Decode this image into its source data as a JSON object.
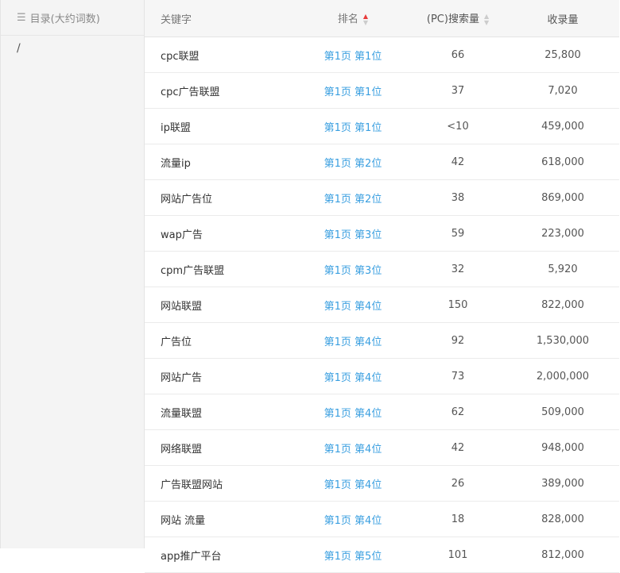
{
  "sidebar": {
    "title": "目录(大约词数)",
    "items": [
      "/"
    ]
  },
  "table": {
    "headers": {
      "keyword": "关键字",
      "rank": "排名",
      "search": "(PC)搜索量",
      "indexed": "收录量"
    },
    "rows": [
      {
        "keyword": "cpc联盟",
        "rank": "第1页 第1位",
        "search": "66",
        "indexed": "25,800"
      },
      {
        "keyword": "cpc广告联盟",
        "rank": "第1页 第1位",
        "search": "37",
        "indexed": "7,020"
      },
      {
        "keyword": "ip联盟",
        "rank": "第1页 第1位",
        "search": "<10",
        "indexed": "459,000"
      },
      {
        "keyword": "流量ip",
        "rank": "第1页 第2位",
        "search": "42",
        "indexed": "618,000"
      },
      {
        "keyword": "网站广告位",
        "rank": "第1页 第2位",
        "search": "38",
        "indexed": "869,000"
      },
      {
        "keyword": "wap广告",
        "rank": "第1页 第3位",
        "search": "59",
        "indexed": "223,000"
      },
      {
        "keyword": "cpm广告联盟",
        "rank": "第1页 第3位",
        "search": "32",
        "indexed": "5,920"
      },
      {
        "keyword": "网站联盟",
        "rank": "第1页 第4位",
        "search": "150",
        "indexed": "822,000"
      },
      {
        "keyword": "广告位",
        "rank": "第1页 第4位",
        "search": "92",
        "indexed": "1,530,000"
      },
      {
        "keyword": "网站广告",
        "rank": "第1页 第4位",
        "search": "73",
        "indexed": "2,000,000"
      },
      {
        "keyword": "流量联盟",
        "rank": "第1页 第4位",
        "search": "62",
        "indexed": "509,000"
      },
      {
        "keyword": "网络联盟",
        "rank": "第1页 第4位",
        "search": "42",
        "indexed": "948,000"
      },
      {
        "keyword": "广告联盟网站",
        "rank": "第1页 第4位",
        "search": "26",
        "indexed": "389,000"
      },
      {
        "keyword": "网站 流量",
        "rank": "第1页 第4位",
        "search": "18",
        "indexed": "828,000"
      },
      {
        "keyword": "app推广平台",
        "rank": "第1页 第5位",
        "search": "101",
        "indexed": "812,000"
      }
    ]
  },
  "colors": {
    "link": "#3a9fe0",
    "sort_active": "#e83b3b"
  }
}
